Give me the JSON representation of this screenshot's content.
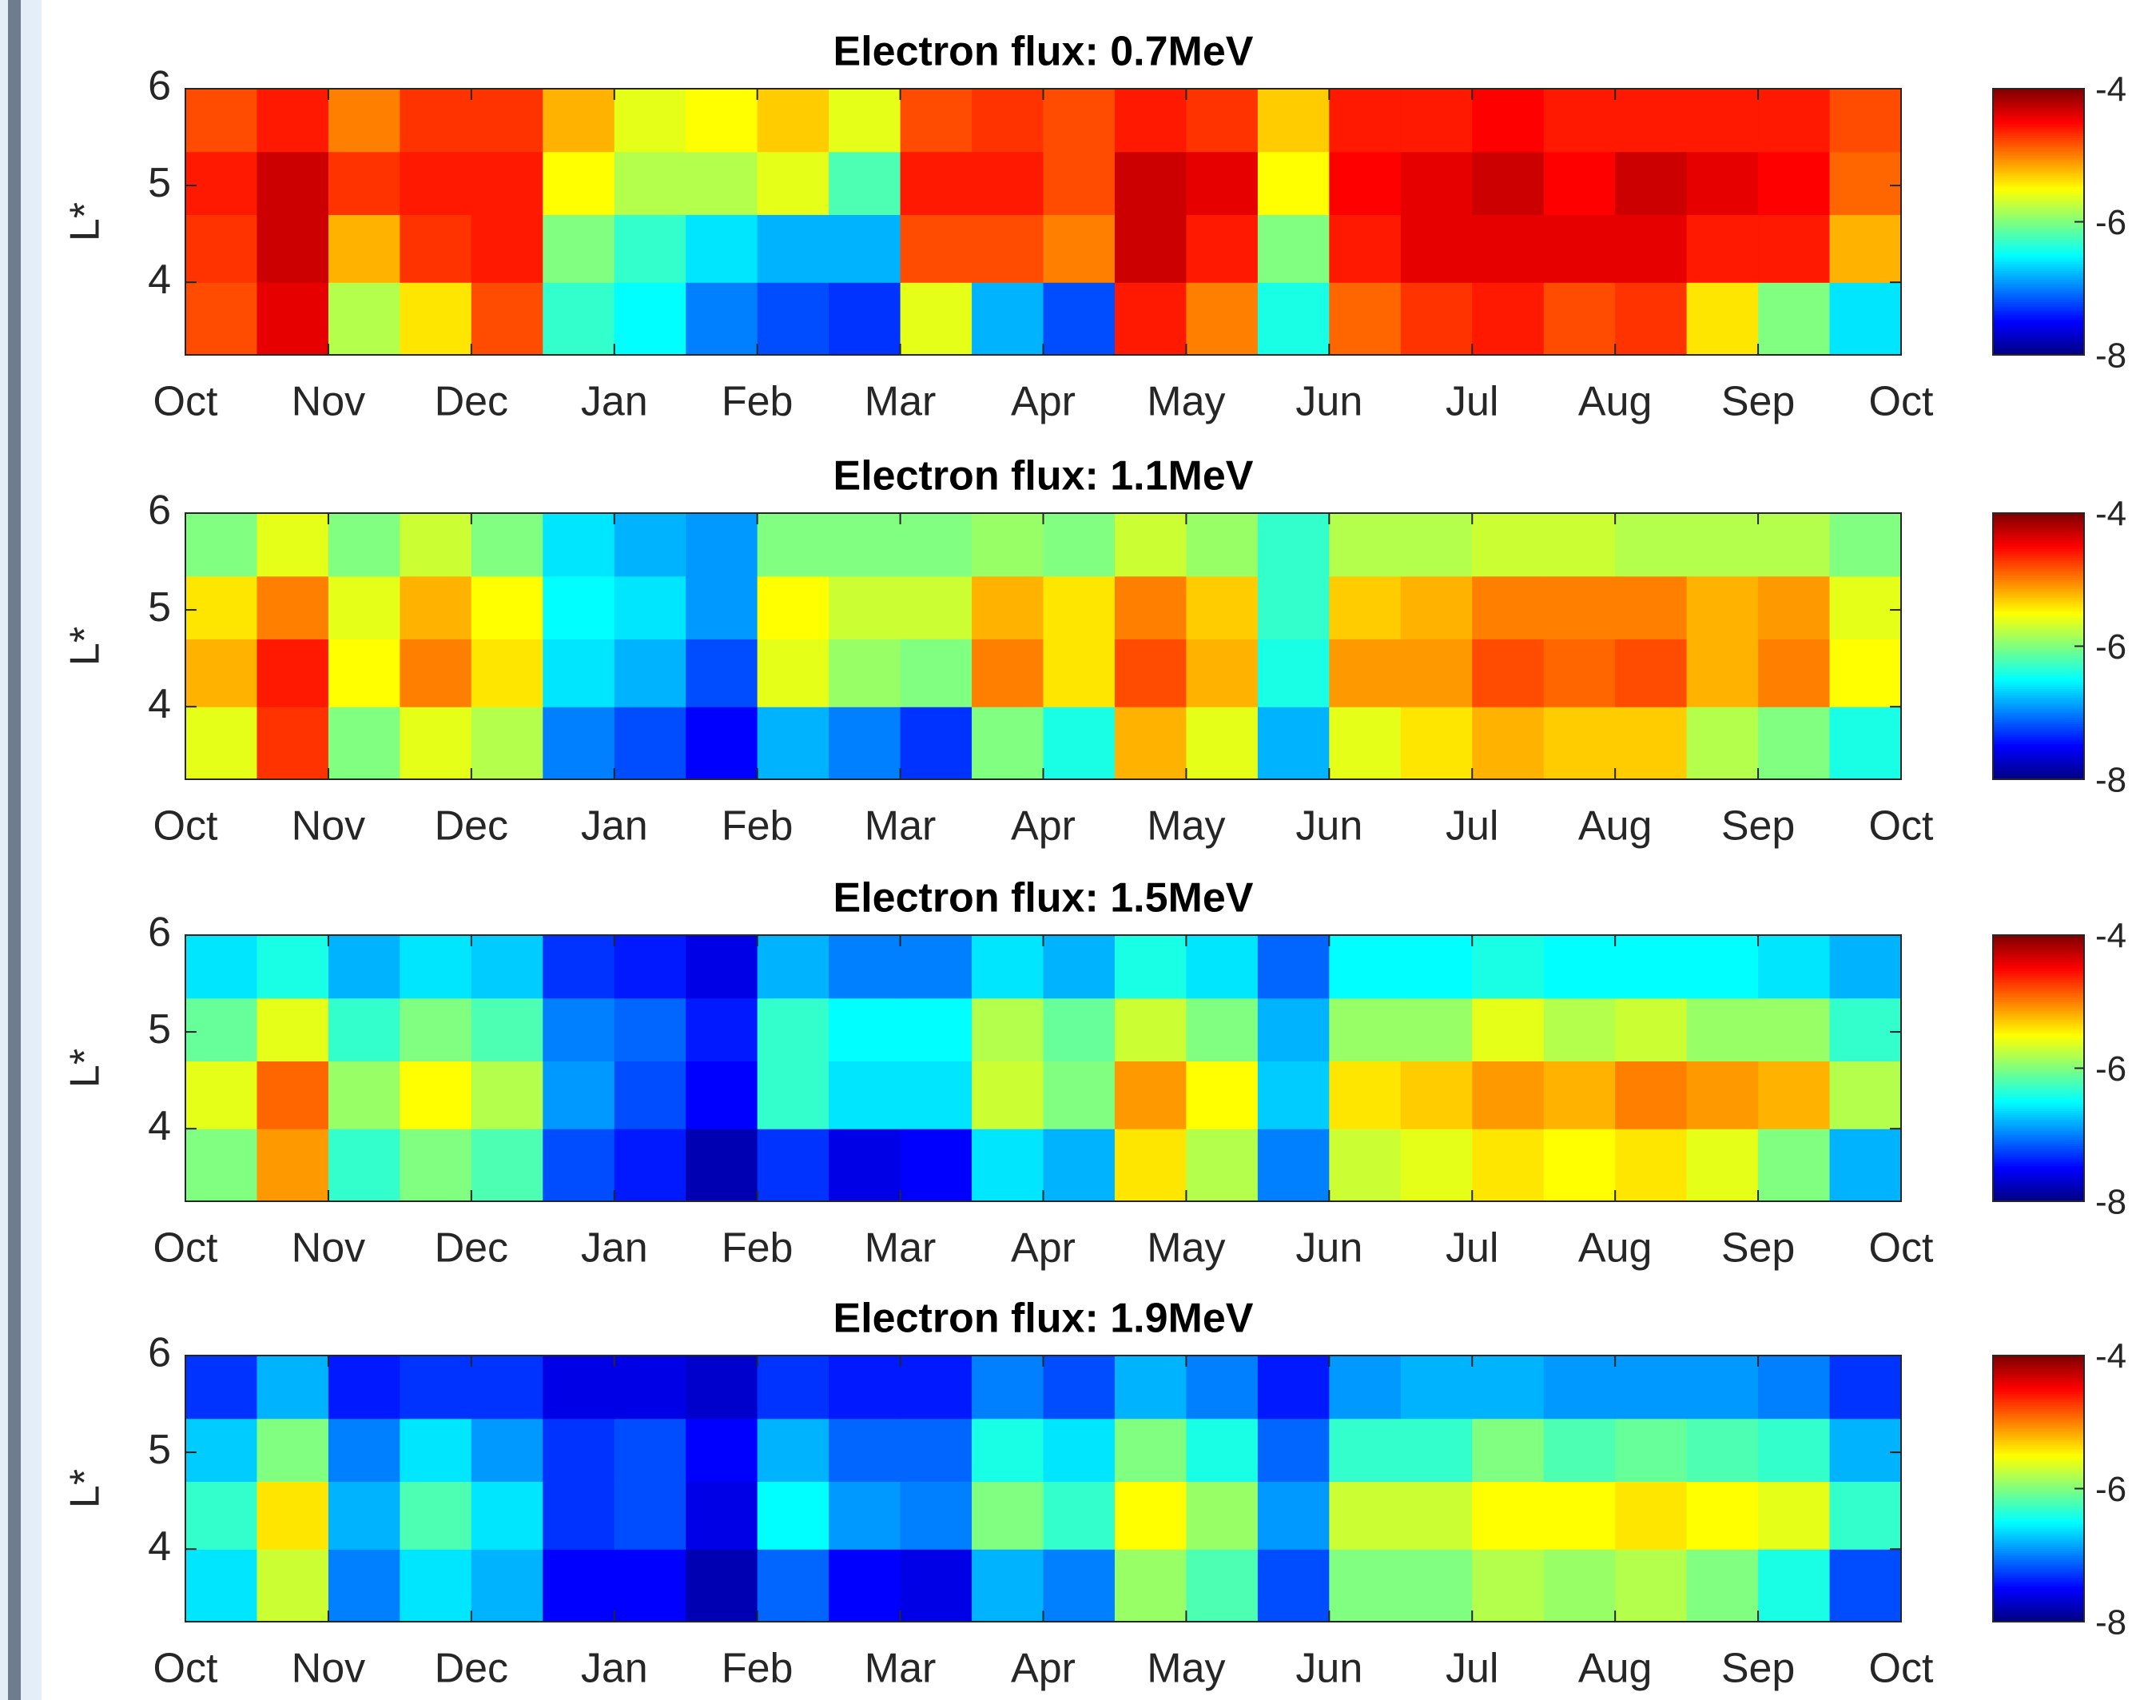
{
  "chart_data": [
    {
      "type": "heatmap",
      "title": "Electron flux:  0.7MeV",
      "ylabel": "L*",
      "xlim": [
        0,
        12
      ],
      "ylim": [
        3.25,
        6
      ],
      "xticks": [
        {
          "value": 0,
          "label": "Oct"
        },
        {
          "value": 1,
          "label": "Nov"
        },
        {
          "value": 2,
          "label": "Dec"
        },
        {
          "value": 3,
          "label": "Jan"
        },
        {
          "value": 4,
          "label": "Feb"
        },
        {
          "value": 5,
          "label": "Mar"
        },
        {
          "value": 6,
          "label": "Apr"
        },
        {
          "value": 7,
          "label": "May"
        },
        {
          "value": 8,
          "label": "Jun"
        },
        {
          "value": 9,
          "label": "Jul"
        },
        {
          "value": 10,
          "label": "Aug"
        },
        {
          "value": 11,
          "label": "Sep"
        },
        {
          "value": 12,
          "label": "Oct"
        }
      ],
      "yticks": [
        4,
        5,
        6
      ],
      "clim": [
        -8,
        -4
      ],
      "cticks": [
        -8,
        -6,
        -4
      ],
      "xedges": [
        0,
        0.5,
        1,
        1.5,
        2,
        2.5,
        3,
        3.5,
        4,
        4.5,
        5,
        5.5,
        6,
        6.5,
        7,
        7.5,
        8,
        8.5,
        9,
        9.5,
        10,
        10.5,
        11,
        11.5,
        12
      ],
      "yedges": [
        3.25,
        4,
        4.7,
        5.35,
        6
      ],
      "z": [
        [
          -4.8,
          -4.4,
          -5.8,
          -5.4,
          -4.8,
          -6.3,
          -6.5,
          -7.0,
          -7.2,
          -7.3,
          -5.6,
          -6.8,
          -7.2,
          -4.6,
          -5.0,
          -6.4,
          -4.9,
          -4.7,
          -4.6,
          -4.8,
          -4.7,
          -5.4,
          -6.0,
          -6.6
        ],
        [
          -4.7,
          -4.3,
          -5.2,
          -4.7,
          -4.6,
          -6.0,
          -6.3,
          -6.6,
          -6.8,
          -6.8,
          -4.8,
          -4.8,
          -5.0,
          -4.3,
          -4.6,
          -6.0,
          -4.6,
          -4.4,
          -4.4,
          -4.4,
          -4.4,
          -4.6,
          -4.6,
          -5.2
        ],
        [
          -4.6,
          -4.3,
          -4.7,
          -4.6,
          -4.6,
          -5.5,
          -5.8,
          -5.8,
          -5.6,
          -6.2,
          -4.6,
          -4.6,
          -4.8,
          -4.3,
          -4.4,
          -5.5,
          -4.5,
          -4.4,
          -4.3,
          -4.5,
          -4.3,
          -4.4,
          -4.5,
          -4.9
        ],
        [
          -4.8,
          -4.6,
          -5.0,
          -4.7,
          -4.7,
          -5.2,
          -5.6,
          -5.5,
          -5.3,
          -5.6,
          -4.8,
          -4.7,
          -4.8,
          -4.6,
          -4.7,
          -5.3,
          -4.6,
          -4.6,
          -4.5,
          -4.6,
          -4.6,
          -4.6,
          -4.6,
          -4.8
        ]
      ]
    },
    {
      "type": "heatmap",
      "title": "Electron flux:  1.1MeV",
      "ylabel": "L*",
      "xlim": [
        0,
        12
      ],
      "ylim": [
        3.25,
        6
      ],
      "xticks": [
        {
          "value": 0,
          "label": "Oct"
        },
        {
          "value": 1,
          "label": "Nov"
        },
        {
          "value": 2,
          "label": "Dec"
        },
        {
          "value": 3,
          "label": "Jan"
        },
        {
          "value": 4,
          "label": "Feb"
        },
        {
          "value": 5,
          "label": "Mar"
        },
        {
          "value": 6,
          "label": "Apr"
        },
        {
          "value": 7,
          "label": "May"
        },
        {
          "value": 8,
          "label": "Jun"
        },
        {
          "value": 9,
          "label": "Jul"
        },
        {
          "value": 10,
          "label": "Aug"
        },
        {
          "value": 11,
          "label": "Sep"
        },
        {
          "value": 12,
          "label": "Oct"
        }
      ],
      "yticks": [
        4,
        5,
        6
      ],
      "clim": [
        -8,
        -4
      ],
      "cticks": [
        -8,
        -6,
        -4
      ],
      "xedges": [
        0,
        0.5,
        1,
        1.5,
        2,
        2.5,
        3,
        3.5,
        4,
        4.5,
        5,
        5.5,
        6,
        6.5,
        7,
        7.5,
        8,
        8.5,
        9,
        9.5,
        10,
        10.5,
        11,
        11.5,
        12
      ],
      "yedges": [
        3.25,
        4,
        4.7,
        5.35,
        6
      ],
      "z": [
        [
          -5.6,
          -4.7,
          -6.0,
          -5.6,
          -5.8,
          -7.0,
          -7.2,
          -7.5,
          -6.8,
          -7.0,
          -7.3,
          -6.0,
          -6.4,
          -5.2,
          -5.6,
          -6.8,
          -5.6,
          -5.4,
          -5.2,
          -5.3,
          -5.3,
          -5.8,
          -6.0,
          -6.4
        ],
        [
          -5.2,
          -4.6,
          -5.5,
          -5.0,
          -5.4,
          -6.6,
          -6.8,
          -7.2,
          -5.6,
          -5.9,
          -6.0,
          -5.0,
          -5.4,
          -4.8,
          -5.2,
          -6.4,
          -5.1,
          -5.1,
          -4.8,
          -4.9,
          -4.8,
          -5.2,
          -5.0,
          -5.5
        ],
        [
          -5.4,
          -5.0,
          -5.6,
          -5.2,
          -5.5,
          -6.5,
          -6.6,
          -6.9,
          -5.5,
          -5.7,
          -5.7,
          -5.2,
          -5.4,
          -5.0,
          -5.3,
          -6.3,
          -5.3,
          -5.2,
          -5.0,
          -5.0,
          -5.0,
          -5.2,
          -5.1,
          -5.6
        ],
        [
          -6.0,
          -5.6,
          -6.0,
          -5.7,
          -6.0,
          -6.6,
          -6.8,
          -6.9,
          -6.0,
          -6.0,
          -6.0,
          -5.9,
          -6.0,
          -5.7,
          -5.9,
          -6.3,
          -5.8,
          -5.8,
          -5.7,
          -5.7,
          -5.8,
          -5.8,
          -5.8,
          -6.0
        ]
      ]
    },
    {
      "type": "heatmap",
      "title": "Electron flux:  1.5MeV",
      "ylabel": "L*",
      "xlim": [
        0,
        12
      ],
      "ylim": [
        3.25,
        6
      ],
      "xticks": [
        {
          "value": 0,
          "label": "Oct"
        },
        {
          "value": 1,
          "label": "Nov"
        },
        {
          "value": 2,
          "label": "Dec"
        },
        {
          "value": 3,
          "label": "Jan"
        },
        {
          "value": 4,
          "label": "Feb"
        },
        {
          "value": 5,
          "label": "Mar"
        },
        {
          "value": 6,
          "label": "Apr"
        },
        {
          "value": 7,
          "label": "May"
        },
        {
          "value": 8,
          "label": "Jun"
        },
        {
          "value": 9,
          "label": "Jul"
        },
        {
          "value": 10,
          "label": "Aug"
        },
        {
          "value": 11,
          "label": "Sep"
        },
        {
          "value": 12,
          "label": "Oct"
        }
      ],
      "yticks": [
        4,
        5,
        6
      ],
      "clim": [
        -8,
        -4
      ],
      "cticks": [
        -8,
        -6,
        -4
      ],
      "xedges": [
        0,
        0.5,
        1,
        1.5,
        2,
        2.5,
        3,
        3.5,
        4,
        4.5,
        5,
        5.5,
        6,
        6.5,
        7,
        7.5,
        8,
        8.5,
        9,
        9.5,
        10,
        10.5,
        11,
        11.5,
        12
      ],
      "yedges": [
        3.25,
        4,
        4.7,
        5.35,
        6
      ],
      "z": [
        [
          -6.0,
          -5.1,
          -6.3,
          -6.0,
          -6.2,
          -7.2,
          -7.4,
          -7.8,
          -7.3,
          -7.6,
          -7.5,
          -6.6,
          -6.8,
          -5.4,
          -5.8,
          -7.0,
          -5.7,
          -5.6,
          -5.4,
          -5.5,
          -5.4,
          -5.6,
          -6.0,
          -6.8
        ],
        [
          -5.6,
          -4.9,
          -5.9,
          -5.5,
          -5.8,
          -6.9,
          -7.2,
          -7.5,
          -6.3,
          -6.6,
          -6.6,
          -5.7,
          -6.0,
          -5.1,
          -5.5,
          -6.7,
          -5.4,
          -5.3,
          -5.1,
          -5.2,
          -5.0,
          -5.1,
          -5.2,
          -5.8
        ],
        [
          -6.1,
          -5.6,
          -6.3,
          -6.0,
          -6.2,
          -7.0,
          -7.1,
          -7.4,
          -6.3,
          -6.5,
          -6.5,
          -5.8,
          -6.1,
          -5.7,
          -6.0,
          -6.8,
          -5.9,
          -5.9,
          -5.6,
          -5.8,
          -5.7,
          -5.9,
          -5.9,
          -6.3
        ],
        [
          -6.6,
          -6.4,
          -6.8,
          -6.6,
          -6.7,
          -7.3,
          -7.4,
          -7.6,
          -6.8,
          -7.0,
          -7.0,
          -6.6,
          -6.8,
          -6.4,
          -6.6,
          -7.1,
          -6.5,
          -6.5,
          -6.4,
          -6.5,
          -6.5,
          -6.5,
          -6.6,
          -6.8
        ]
      ]
    },
    {
      "type": "heatmap",
      "title": "Electron flux:  1.9MeV",
      "ylabel": "L*",
      "xlim": [
        0,
        12
      ],
      "ylim": [
        3.25,
        6
      ],
      "xticks": [
        {
          "value": 0,
          "label": "Oct"
        },
        {
          "value": 1,
          "label": "Nov"
        },
        {
          "value": 2,
          "label": "Dec"
        },
        {
          "value": 3,
          "label": "Jan"
        },
        {
          "value": 4,
          "label": "Feb"
        },
        {
          "value": 5,
          "label": "Mar"
        },
        {
          "value": 6,
          "label": "Apr"
        },
        {
          "value": 7,
          "label": "May"
        },
        {
          "value": 8,
          "label": "Jun"
        },
        {
          "value": 9,
          "label": "Jul"
        },
        {
          "value": 10,
          "label": "Aug"
        },
        {
          "value": 11,
          "label": "Sep"
        },
        {
          "value": 12,
          "label": "Oct"
        }
      ],
      "yticks": [
        4,
        5,
        6
      ],
      "clim": [
        -8,
        -4
      ],
      "cticks": [
        -8,
        -6,
        -4
      ],
      "xedges": [
        0,
        0.5,
        1,
        1.5,
        2,
        2.5,
        3,
        3.5,
        4,
        4.5,
        5,
        5.5,
        6,
        6.5,
        7,
        7.5,
        8,
        8.5,
        9,
        9.5,
        10,
        10.5,
        11,
        11.5,
        12
      ],
      "yedges": [
        3.25,
        4,
        4.7,
        5.35,
        6
      ],
      "z": [
        [
          -6.6,
          -5.7,
          -7.0,
          -6.6,
          -6.8,
          -7.5,
          -7.5,
          -7.8,
          -7.1,
          -7.5,
          -7.6,
          -6.8,
          -7.0,
          -5.9,
          -6.2,
          -7.2,
          -6.0,
          -6.0,
          -5.8,
          -5.9,
          -5.8,
          -6.0,
          -6.4,
          -7.2
        ],
        [
          -6.3,
          -5.4,
          -6.8,
          -6.2,
          -6.6,
          -7.3,
          -7.2,
          -7.6,
          -6.5,
          -6.9,
          -7.0,
          -6.0,
          -6.3,
          -5.5,
          -5.9,
          -6.9,
          -5.7,
          -5.7,
          -5.5,
          -5.5,
          -5.4,
          -5.5,
          -5.6,
          -6.3
        ],
        [
          -6.7,
          -6.0,
          -7.0,
          -6.6,
          -6.9,
          -7.3,
          -7.2,
          -7.5,
          -6.8,
          -7.1,
          -7.1,
          -6.4,
          -6.6,
          -6.0,
          -6.4,
          -7.1,
          -6.3,
          -6.3,
          -6.0,
          -6.2,
          -6.1,
          -6.2,
          -6.3,
          -6.8
        ],
        [
          -7.3,
          -6.8,
          -7.4,
          -7.3,
          -7.3,
          -7.6,
          -7.6,
          -7.7,
          -7.3,
          -7.4,
          -7.4,
          -7.0,
          -7.2,
          -6.8,
          -7.0,
          -7.4,
          -6.9,
          -6.8,
          -6.8,
          -6.9,
          -6.9,
          -6.9,
          -7.0,
          -7.3
        ]
      ]
    }
  ]
}
